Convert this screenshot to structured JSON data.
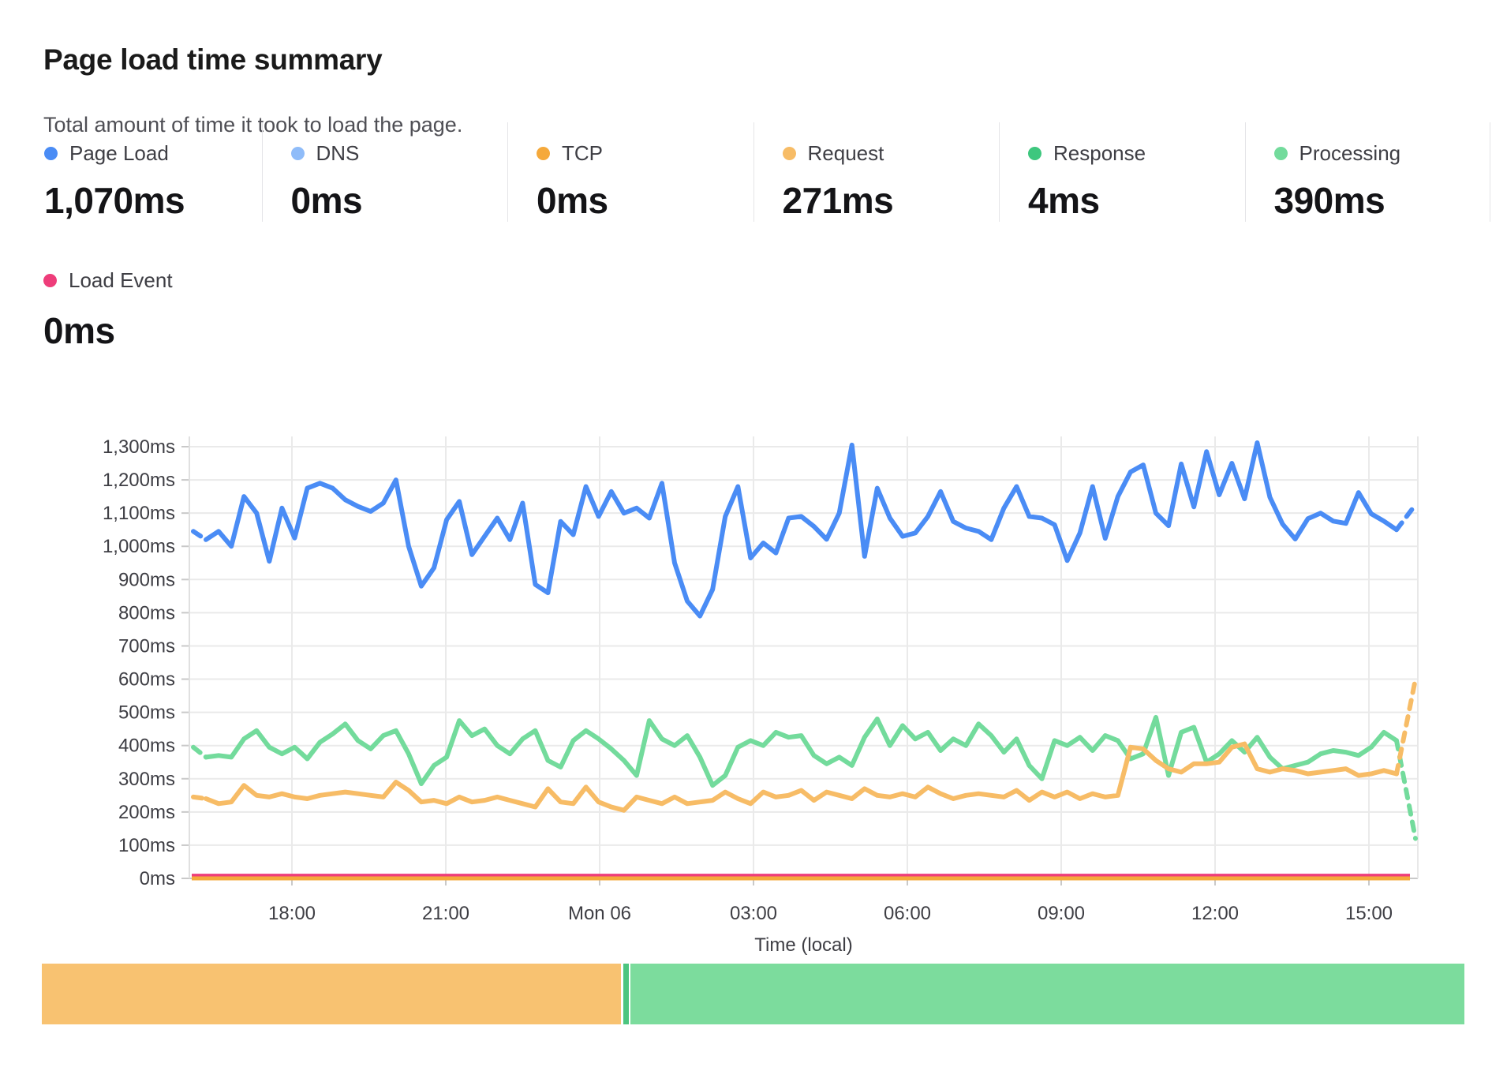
{
  "header": {
    "title": "Page load time summary",
    "subtitle": "Total amount of time it took to load the page."
  },
  "stats": [
    {
      "label": "Page Load",
      "value": "1,070ms",
      "color": "#4a8cf5"
    },
    {
      "label": "DNS",
      "value": "0ms",
      "color": "#8fbcf9"
    },
    {
      "label": "TCP",
      "value": "0ms",
      "color": "#f5a93b"
    },
    {
      "label": "Request",
      "value": "271ms",
      "color": "#f7bc66"
    },
    {
      "label": "Response",
      "value": "4ms",
      "color": "#3ec77e"
    },
    {
      "label": "Processing",
      "value": "390ms",
      "color": "#73db9c"
    }
  ],
  "load_event": {
    "label": "Load Event",
    "value": "0ms",
    "color": "#ee3d7a"
  },
  "chart_data": {
    "type": "line",
    "title": "Page load time summary",
    "xlabel": "Time (local)",
    "ylabel": "",
    "ylim": [
      0,
      1300
    ],
    "grid": true,
    "y_tick_labels": [
      "0ms",
      "100ms",
      "200ms",
      "300ms",
      "400ms",
      "500ms",
      "600ms",
      "700ms",
      "800ms",
      "900ms",
      "1,000ms",
      "1,100ms",
      "1,200ms",
      "1,300ms"
    ],
    "x_tick_labels": [
      "18:00",
      "21:00",
      "Mon 06",
      "03:00",
      "06:00",
      "09:00",
      "12:00",
      "15:00"
    ],
    "interval_minutes": 15,
    "series": [
      {
        "name": "Page Load",
        "color": "#4a8cf5",
        "dashed_tail_to": 1125,
        "values": [
          1045,
          1020,
          1045,
          1000,
          1150,
          1100,
          955,
          1115,
          1025,
          1175,
          1190,
          1175,
          1140,
          1120,
          1105,
          1130,
          1200,
          1000,
          880,
          935,
          1080,
          1135,
          975,
          1030,
          1085,
          1020,
          1130,
          885,
          860,
          1075,
          1035,
          1180,
          1090,
          1165,
          1100,
          1115,
          1085,
          1190,
          950,
          835,
          790,
          870,
          1090,
          1180,
          965,
          1010,
          980,
          1085,
          1090,
          1060,
          1021,
          1100,
          1305,
          970,
          1175,
          1085,
          1030,
          1040,
          1090,
          1165,
          1075,
          1055,
          1045,
          1020,
          1115,
          1180,
          1090,
          1085,
          1065,
          957,
          1040,
          1180,
          1024,
          1150,
          1224,
          1245,
          1100,
          1062,
          1248,
          1119,
          1285,
          1155,
          1250,
          1143,
          1312,
          1148,
          1067,
          1022,
          1083,
          1100,
          1076,
          1069,
          1162,
          1098,
          1076,
          1050
        ]
      },
      {
        "name": "Processing",
        "color": "#73db9c",
        "dashed_tail_to": 120,
        "values": [
          395,
          365,
          370,
          365,
          420,
          445,
          395,
          375,
          395,
          360,
          410,
          435,
          465,
          415,
          390,
          430,
          445,
          375,
          285,
          340,
          365,
          475,
          430,
          450,
          400,
          375,
          420,
          445,
          355,
          335,
          415,
          445,
          420,
          390,
          355,
          310,
          475,
          420,
          400,
          430,
          365,
          280,
          310,
          395,
          415,
          400,
          440,
          425,
          430,
          370,
          345,
          365,
          340,
          425,
          480,
          400,
          460,
          420,
          440,
          385,
          420,
          400,
          465,
          430,
          380,
          420,
          340,
          300,
          415,
          400,
          425,
          385,
          430,
          415,
          360,
          375,
          485,
          310,
          440,
          455,
          350,
          375,
          415,
          380,
          425,
          365,
          330,
          340,
          350,
          375,
          385,
          380,
          370,
          395,
          440,
          415
        ]
      },
      {
        "name": "Request",
        "color": "#f7bc66",
        "dashed_tail_to": 600,
        "values": [
          245,
          240,
          225,
          230,
          280,
          250,
          245,
          255,
          245,
          240,
          250,
          255,
          260,
          255,
          250,
          245,
          290,
          265,
          230,
          235,
          225,
          245,
          230,
          235,
          245,
          235,
          225,
          215,
          270,
          230,
          225,
          275,
          230,
          215,
          205,
          245,
          235,
          225,
          245,
          225,
          230,
          235,
          260,
          240,
          225,
          260,
          245,
          250,
          265,
          235,
          260,
          250,
          240,
          270,
          250,
          245,
          255,
          245,
          275,
          255,
          240,
          250,
          255,
          250,
          245,
          265,
          235,
          260,
          245,
          260,
          240,
          255,
          245,
          250,
          395,
          390,
          355,
          330,
          320,
          345,
          345,
          350,
          395,
          405,
          330,
          320,
          330,
          325,
          315,
          320,
          325,
          330,
          310,
          315,
          325,
          315
        ]
      },
      {
        "name": "Response",
        "color": "#3ec77e",
        "flat_value": 5
      },
      {
        "name": "Load Event",
        "color": "#ee3d7a",
        "flat_value": 8
      },
      {
        "name": "DNS",
        "color": "#8fbcf9",
        "flat_value": 0
      },
      {
        "name": "TCP",
        "color": "#f5a93b",
        "flat_value": 0
      }
    ]
  },
  "bottom_bar": {
    "segments": [
      {
        "name": "request-share",
        "color": "#f8c271",
        "width_pct": 40.7
      },
      {
        "name": "gap",
        "color": "#ffffff",
        "width_pct": 0.17
      },
      {
        "name": "response-share",
        "color": "#4cc57f",
        "width_pct": 0.4
      },
      {
        "name": "gap",
        "color": "#ffffff",
        "width_pct": 0.13
      },
      {
        "name": "processing-share",
        "color": "#7cdc9d",
        "width_pct": 58.6
      }
    ]
  }
}
